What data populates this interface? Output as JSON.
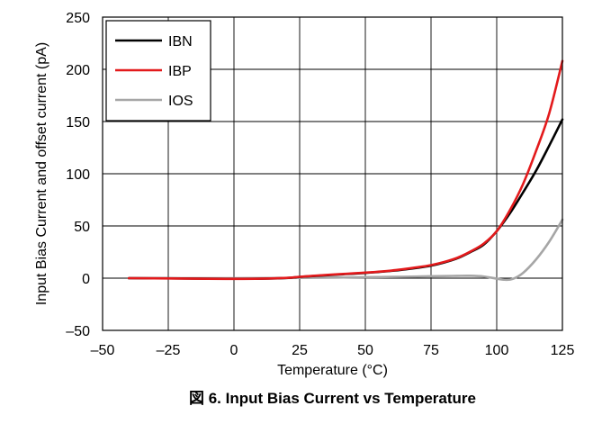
{
  "caption": "図 6. Input Bias Current vs Temperature",
  "chart_data": {
    "type": "line",
    "title": "",
    "xlabel": "Temperature (°C)",
    "ylabel": "Input Bias Current and offset current (pA)",
    "xlim": [
      -50,
      125
    ],
    "ylim": [
      -50,
      250
    ],
    "xticks": [
      -50,
      -25,
      0,
      25,
      50,
      75,
      100,
      125
    ],
    "yticks": [
      -50,
      0,
      50,
      100,
      150,
      200,
      250
    ],
    "xtick_labels": [
      "–50",
      "–25",
      "0",
      "25",
      "50",
      "75",
      "100",
      "125"
    ],
    "ytick_labels": [
      "–50",
      "0",
      "50",
      "100",
      "150",
      "200",
      "250"
    ],
    "grid": true,
    "legend_position": "top-left",
    "series": [
      {
        "name": "IBN",
        "color": "#000000",
        "x": [
          -40,
          -25,
          -10,
          0,
          10,
          20,
          25,
          30,
          40,
          50,
          60,
          70,
          75,
          80,
          85,
          90,
          95,
          100,
          105,
          110,
          115,
          120,
          125
        ],
        "y": [
          0,
          -0.2,
          -0.5,
          -0.6,
          -0.5,
          0.2,
          1.2,
          2,
          3.5,
          5,
          7,
          10,
          12,
          15,
          19,
          25,
          32,
          45,
          62,
          82,
          103,
          127,
          152
        ]
      },
      {
        "name": "IBP",
        "color": "#e31a1c",
        "x": [
          -40,
          -25,
          -10,
          0,
          10,
          20,
          25,
          30,
          40,
          50,
          60,
          70,
          75,
          80,
          85,
          90,
          95,
          100,
          105,
          110,
          115,
          120,
          125
        ],
        "y": [
          0,
          -0.3,
          -0.6,
          -0.7,
          -0.5,
          0.3,
          1.3,
          2.2,
          3.8,
          5.3,
          7.3,
          10.5,
          12.5,
          15.5,
          19.5,
          25.5,
          33,
          45,
          65,
          90,
          122,
          158,
          208
        ]
      },
      {
        "name": "IOS",
        "color": "#a6a6a6",
        "x": [
          -40,
          -25,
          -10,
          0,
          10,
          20,
          30,
          40,
          50,
          60,
          70,
          80,
          85,
          90,
          95,
          100,
          103,
          106,
          110,
          115,
          120,
          125
        ],
        "y": [
          0,
          0,
          0,
          0,
          0.1,
          0.2,
          0.4,
          0.6,
          0.9,
          1.2,
          1.6,
          2,
          2.2,
          2.3,
          1.6,
          -0.5,
          -1.5,
          -0.8,
          5,
          18,
          35,
          56
        ]
      }
    ]
  }
}
